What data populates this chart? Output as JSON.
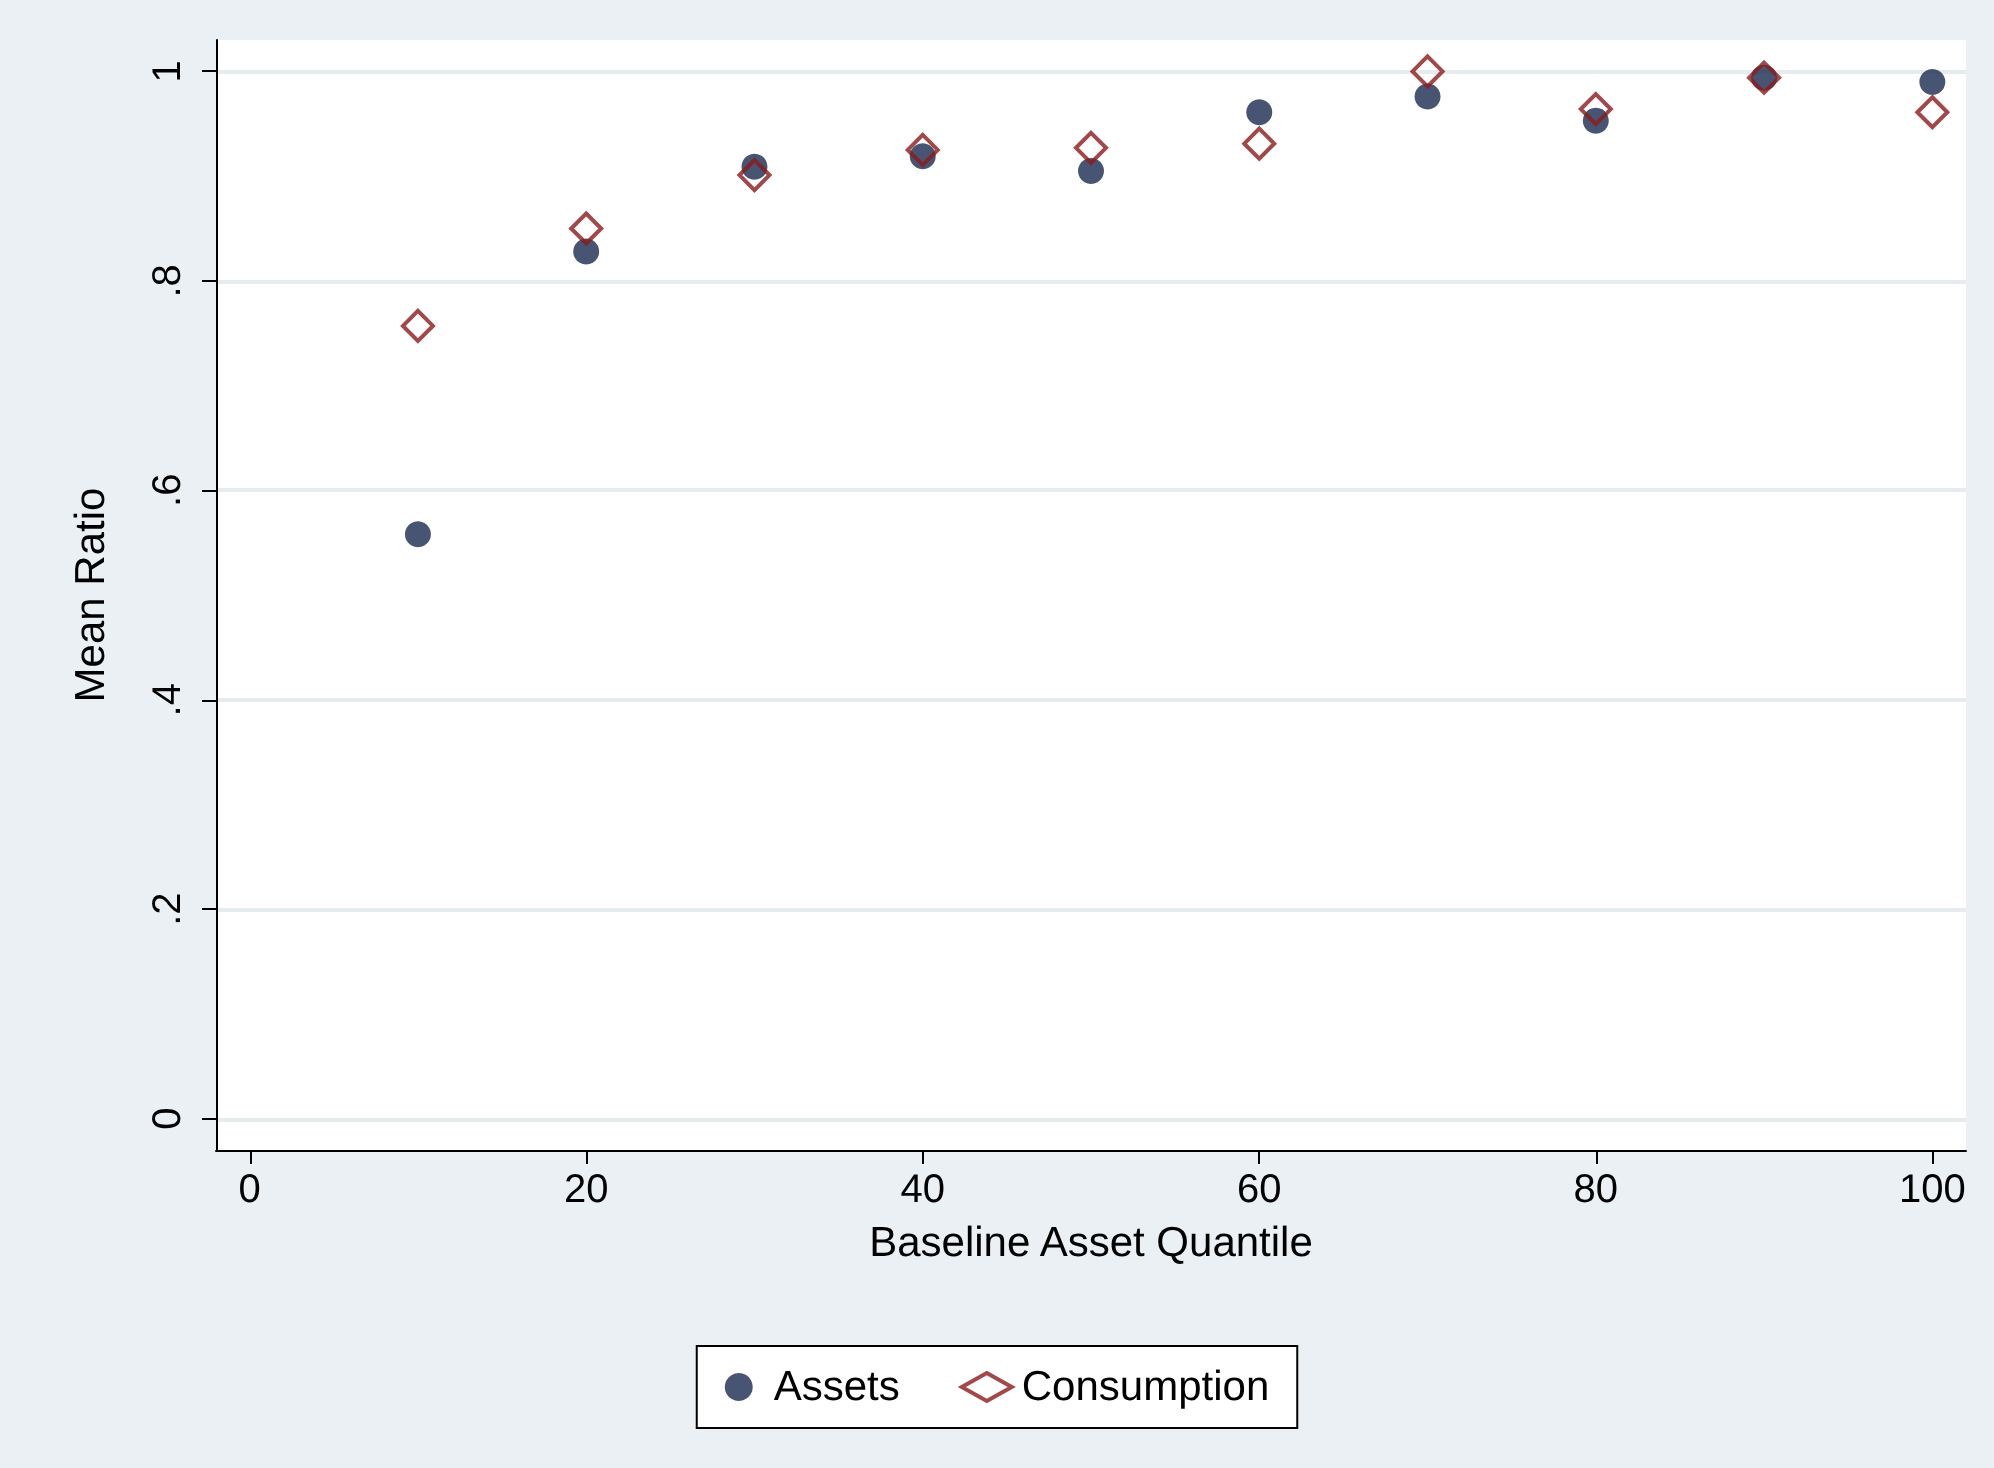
{
  "chart_data": {
    "type": "scatter",
    "xlabel": "Baseline Asset Quantile",
    "ylabel": "Mean Ratio",
    "x": [
      10,
      20,
      30,
      40,
      50,
      60,
      70,
      80,
      90,
      100
    ],
    "series": [
      {
        "name": "Assets",
        "color": "#1a2a4f",
        "marker": "circle",
        "values": [
          0.558,
          0.828,
          0.909,
          0.919,
          0.905,
          0.961,
          0.976,
          0.953,
          0.994,
          0.99
        ]
      },
      {
        "name": "Consumption",
        "color": "#8b1a1a",
        "marker": "diamond",
        "values": [
          0.757,
          0.85,
          0.901,
          0.925,
          0.927,
          0.931,
          1.0,
          0.964,
          0.994,
          0.961
        ]
      }
    ],
    "xlim": [
      -2,
      102
    ],
    "xticks": [
      0,
      20,
      40,
      60,
      80,
      100
    ],
    "ylim": [
      -0.03,
      1.03
    ],
    "yticks": [
      {
        "value": 0,
        "label": "0"
      },
      {
        "value": 0.2,
        "label": ".2"
      },
      {
        "value": 0.4,
        "label": ".4"
      },
      {
        "value": 0.6,
        "label": ".6"
      },
      {
        "value": 0.8,
        "label": ".8"
      },
      {
        "value": 1,
        "label": "1"
      }
    ],
    "grid": "y",
    "legend": "bottom"
  }
}
